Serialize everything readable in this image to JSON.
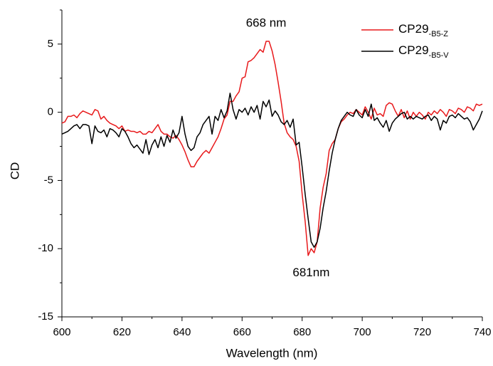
{
  "chart_data": {
    "type": "line",
    "xlabel": "Wavelength (nm)",
    "ylabel": "CD",
    "xlim": [
      600,
      740
    ],
    "ylim": [
      -15,
      7.5
    ],
    "xticks": [
      600,
      620,
      640,
      660,
      680,
      700,
      720,
      740
    ],
    "yticks": [
      -15,
      -10,
      -5,
      0,
      5
    ],
    "legend": "upper right",
    "annotations": [
      {
        "text": "668 nm",
        "x": 668,
        "y": 6.5
      },
      {
        "text": "681nm",
        "x": 683,
        "y": -11.8
      }
    ],
    "x": [
      600,
      601,
      602,
      603,
      604,
      605,
      606,
      607,
      608,
      609,
      610,
      611,
      612,
      613,
      614,
      615,
      616,
      617,
      618,
      619,
      620,
      621,
      622,
      623,
      624,
      625,
      626,
      627,
      628,
      629,
      630,
      631,
      632,
      633,
      634,
      635,
      636,
      637,
      638,
      639,
      640,
      641,
      642,
      643,
      644,
      645,
      646,
      647,
      648,
      649,
      650,
      651,
      652,
      653,
      654,
      655,
      656,
      657,
      658,
      659,
      660,
      661,
      662,
      663,
      664,
      665,
      666,
      667,
      668,
      669,
      670,
      671,
      672,
      673,
      674,
      675,
      676,
      677,
      678,
      679,
      680,
      681,
      682,
      683,
      684,
      685,
      686,
      687,
      688,
      689,
      690,
      691,
      692,
      693,
      694,
      695,
      696,
      697,
      698,
      699,
      700,
      701,
      702,
      703,
      704,
      705,
      706,
      707,
      708,
      709,
      710,
      711,
      712,
      713,
      714,
      715,
      716,
      717,
      718,
      719,
      720,
      721,
      722,
      723,
      724,
      725,
      726,
      727,
      728,
      729,
      730,
      731,
      732,
      733,
      734,
      735,
      736,
      737,
      738,
      739,
      740
    ],
    "series": [
      {
        "name": "CP29",
        "name_sub": "-B5-Z",
        "color": "#e8191b",
        "values": [
          -0.8,
          -0.7,
          -0.3,
          -0.3,
          -0.2,
          -0.4,
          -0.1,
          0.1,
          0,
          -0.1,
          -0.2,
          0.2,
          0.1,
          -0.5,
          -0.3,
          -0.6,
          -0.8,
          -0.9,
          -1.0,
          -1.2,
          -1.0,
          -1.4,
          -1.3,
          -1.4,
          -1.4,
          -1.5,
          -1.4,
          -1.6,
          -1.6,
          -1.4,
          -1.5,
          -1.2,
          -0.9,
          -1.4,
          -1.6,
          -1.6,
          -1.8,
          -1.9,
          -1.7,
          -2.0,
          -2.4,
          -2.9,
          -3.5,
          -4.0,
          -4.0,
          -3.6,
          -3.3,
          -3.0,
          -2.8,
          -3.0,
          -2.6,
          -2.2,
          -1.8,
          -1.2,
          -0.5,
          -0.2,
          0.8,
          0.8,
          1.2,
          1.5,
          2.5,
          2.6,
          3.7,
          3.8,
          4.0,
          4.3,
          4.6,
          4.4,
          5.2,
          5.2,
          4.5,
          3.5,
          2.2,
          0.8,
          -0.8,
          -1.5,
          -1.8,
          -2.0,
          -2.5,
          -3.6,
          -6.0,
          -8.0,
          -10.5,
          -10.0,
          -10.3,
          -9.5,
          -7.0,
          -5.5,
          -4.5,
          -2.8,
          -2.3,
          -2.0,
          -1.2,
          -0.7,
          -0.5,
          -0.2,
          0,
          -0.1,
          0.2,
          0,
          -0.2,
          0.4,
          0,
          -0.5,
          0.3,
          -0.2,
          -0.1,
          -0.3,
          0.5,
          0.7,
          0.6,
          0.1,
          -0.3,
          0.2,
          -0.4,
          0.1,
          -0.5,
          0,
          -0.3,
          0,
          -0.2,
          -0.5,
          0,
          -0.2,
          0.1,
          -0.1,
          0.2,
          0,
          -0.3,
          0.2,
          0.1,
          -0.1,
          0.3,
          0.2,
          0,
          0.4,
          0.3,
          0.1,
          0.6,
          0.5,
          0.6
        ]
      },
      {
        "name": "CP29",
        "name_sub": "-B5-V",
        "color": "#000000",
        "values": [
          -1.6,
          -1.5,
          -1.4,
          -1.2,
          -1.0,
          -0.9,
          -1.2,
          -0.9,
          -0.9,
          -1.0,
          -2.3,
          -1.0,
          -1.4,
          -1.5,
          -1.3,
          -1.8,
          -1.2,
          -1.3,
          -1.5,
          -1.8,
          -1.2,
          -1.4,
          -1.8,
          -2.3,
          -2.6,
          -2.4,
          -2.7,
          -3.0,
          -2.0,
          -3.1,
          -2.4,
          -2.0,
          -2.6,
          -1.8,
          -2.5,
          -1.7,
          -2.2,
          -1.3,
          -1.9,
          -1.5,
          -0.3,
          -1.6,
          -2.5,
          -2.8,
          -2.6,
          -1.8,
          -1.5,
          -0.9,
          -0.6,
          -0.3,
          -1.6,
          -0.3,
          -0.6,
          0.2,
          -0.4,
          0.1,
          1.4,
          0.2,
          -0.5,
          0.2,
          0,
          0.3,
          -0.2,
          0.4,
          0,
          0.5,
          -0.5,
          0.8,
          0.4,
          0.9,
          -0.3,
          0.1,
          -0.2,
          -0.7,
          -0.9,
          -0.6,
          -1.1,
          -0.5,
          -2.4,
          -2.2,
          -4.0,
          -6.0,
          -7.8,
          -9.5,
          -9.9,
          -9.5,
          -8.5,
          -7.0,
          -5.8,
          -4.3,
          -3.0,
          -2.0,
          -1.2,
          -0.6,
          -0.3,
          0,
          -0.2,
          -0.3,
          0.2,
          -0.2,
          -0.4,
          0.2,
          -0.3,
          0.6,
          -0.6,
          -0.4,
          -0.8,
          -1.1,
          -0.6,
          -1.4,
          -0.8,
          -0.5,
          -0.3,
          -0.1,
          0,
          -0.5,
          -0.3,
          -0.5,
          -0.3,
          -0.4,
          -0.5,
          -0.3,
          -0.2,
          -0.6,
          -0.3,
          -0.5,
          -1.3,
          -0.6,
          -0.8,
          -0.3,
          -0.2,
          -0.4,
          -0.1,
          -0.3,
          -0.5,
          -0.4,
          -0.7,
          -1.3,
          -0.9,
          -0.5,
          0.1
        ]
      }
    ]
  }
}
